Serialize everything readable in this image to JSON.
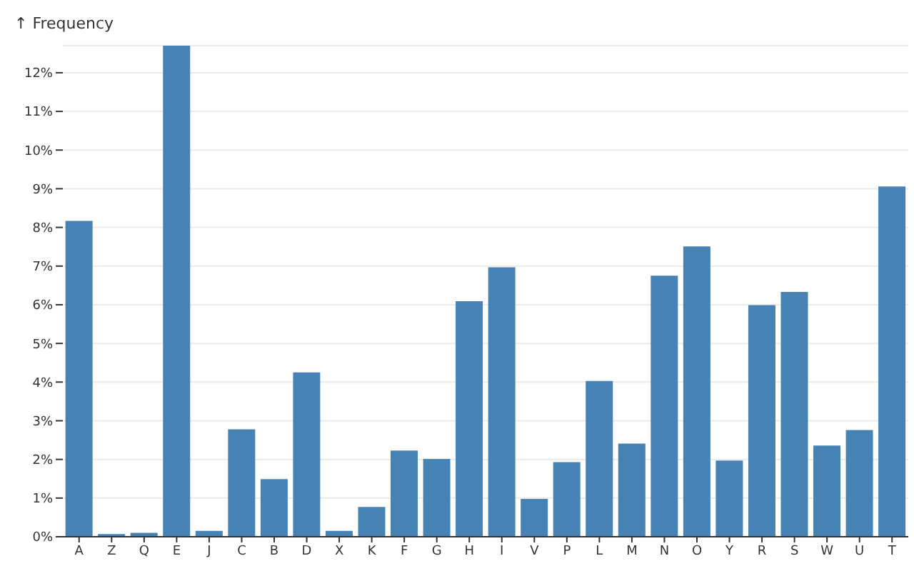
{
  "chart_data": {
    "type": "bar",
    "ylabel": "↑ Frequency",
    "categories": [
      "A",
      "Z",
      "Q",
      "E",
      "J",
      "C",
      "B",
      "D",
      "X",
      "K",
      "F",
      "G",
      "H",
      "I",
      "V",
      "P",
      "L",
      "M",
      "N",
      "O",
      "Y",
      "R",
      "S",
      "W",
      "U",
      "T"
    ],
    "values": [
      8.17,
      0.07,
      0.1,
      12.7,
      0.15,
      2.78,
      1.49,
      4.25,
      0.15,
      0.77,
      2.23,
      2.01,
      6.09,
      6.97,
      0.98,
      1.93,
      4.03,
      2.41,
      6.75,
      7.51,
      1.97,
      5.99,
      6.33,
      2.36,
      2.76,
      9.06
    ],
    "color": "#4682b4",
    "ylim": [
      0,
      12.7
    ],
    "yticks": [
      {
        "value": 0,
        "label": "0%"
      },
      {
        "value": 1,
        "label": "1%"
      },
      {
        "value": 2,
        "label": "2%"
      },
      {
        "value": 3,
        "label": "3%"
      },
      {
        "value": 4,
        "label": "4%"
      },
      {
        "value": 5,
        "label": "5%"
      },
      {
        "value": 6,
        "label": "6%"
      },
      {
        "value": 7,
        "label": "7%"
      },
      {
        "value": 8,
        "label": "8%"
      },
      {
        "value": 9,
        "label": "9%"
      },
      {
        "value": 10,
        "label": "10%"
      },
      {
        "value": 11,
        "label": "11%"
      },
      {
        "value": 12,
        "label": "12%"
      }
    ],
    "grid": "y"
  }
}
